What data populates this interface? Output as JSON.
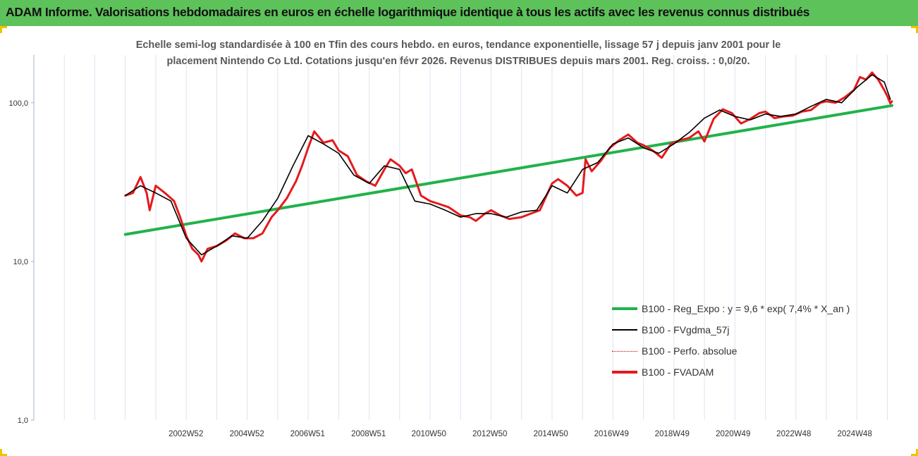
{
  "title": "ADAM Informe. Valorisations hebdomadaires en euros en échelle logarithmique identique à tous les actifs avec les revenus connus distribués",
  "subtitle_lines": [
    "Echelle semi-log standardisée à 100 en Tfin des cours hebdo. en euros, tendance exponentielle, lissage 57 j depuis janv 2001 pour le",
    "placement Nintendo Co Ltd. Cotations jusqu'en févr 2026. Revenus DISTRIBUES depuis mars 2001. Reg. croiss. : 0,0/20."
  ],
  "colors": {
    "title_bar": "#5ec25b",
    "frame_corner": "#f2c300",
    "trend": "#21b24b",
    "smooth": "#000000",
    "perf": "#c00000",
    "fvadam": "#e41a1c"
  },
  "chart_data": {
    "type": "line",
    "y_scale": "log",
    "ylim": [
      1,
      200
    ],
    "y_ticks": [
      "1,0",
      "10,0",
      "100,0"
    ],
    "y_tick_values": [
      1,
      10,
      100
    ],
    "x_range": [
      1998.0,
      2026.15
    ],
    "x_tick_labels": [
      "2002W52",
      "2004W52",
      "2006W51",
      "2008W51",
      "2010W50",
      "2012W50",
      "2014W50",
      "2016W49",
      "2018W49",
      "2020W49",
      "2022W48",
      "2024W48"
    ],
    "x_tick_values": [
      2002.99,
      2004.99,
      2006.98,
      2008.98,
      2010.96,
      2012.96,
      2014.96,
      2016.95,
      2018.94,
      2020.94,
      2022.93,
      2024.93
    ],
    "grid": true,
    "legend_position": "bottom-right",
    "series": [
      {
        "name": "B100 - Reg_Expo : y = 9,6 * exp( 7,4% *  X_an )",
        "style": "trend",
        "x": [
          2001.0,
          2026.15
        ],
        "y": [
          14.8,
          96.0
        ]
      },
      {
        "name": "B100 - FVgdma_57j",
        "style": "smooth",
        "x": [
          2001.0,
          2001.5,
          2002.0,
          2002.5,
          2003.0,
          2003.5,
          2004.0,
          2004.5,
          2005.0,
          2005.5,
          2006.0,
          2006.5,
          2007.0,
          2007.5,
          2008.0,
          2008.5,
          2009.0,
          2009.5,
          2010.0,
          2010.5,
          2011.0,
          2011.5,
          2012.0,
          2012.5,
          2013.0,
          2013.5,
          2014.0,
          2014.5,
          2015.0,
          2015.5,
          2016.0,
          2016.5,
          2017.0,
          2017.5,
          2018.0,
          2018.5,
          2019.0,
          2019.5,
          2020.0,
          2020.5,
          2021.0,
          2021.5,
          2022.0,
          2022.5,
          2023.0,
          2023.5,
          2024.0,
          2024.5,
          2025.0,
          2025.5,
          2025.9,
          2026.1
        ],
        "y": [
          26,
          30,
          27,
          24,
          14,
          11,
          12.5,
          14.5,
          14,
          18,
          25,
          40,
          62,
          55,
          48,
          35,
          31,
          40,
          38,
          24,
          23,
          21,
          19,
          20,
          20,
          19,
          20.5,
          21,
          30,
          27,
          38,
          42,
          55,
          60,
          52,
          48,
          55,
          65,
          80,
          90,
          82,
          78,
          85,
          82,
          85,
          95,
          105,
          100,
          125,
          150,
          135,
          105
        ]
      },
      {
        "name": "B100 - Perfo. absolue",
        "style": "perf",
        "x": [
          2001.0,
          2001.5,
          2002.0,
          2002.5,
          2003.0,
          2003.5,
          2004.0,
          2004.5,
          2005.0,
          2005.5,
          2006.0,
          2006.5,
          2007.0,
          2007.5,
          2008.0,
          2008.5,
          2009.0,
          2009.5,
          2010.0,
          2010.5,
          2011.0,
          2011.5,
          2012.0,
          2012.5,
          2013.0,
          2013.5,
          2014.0,
          2014.5,
          2015.0,
          2015.5,
          2016.0,
          2016.5,
          2017.0,
          2017.5,
          2018.0,
          2018.5,
          2019.0,
          2019.5,
          2020.0,
          2020.5,
          2021.0,
          2021.5,
          2022.0,
          2022.5,
          2023.0,
          2023.5,
          2024.0,
          2024.5,
          2025.0,
          2025.5,
          2025.9,
          2026.1
        ],
        "y": [
          26,
          30,
          27,
          24,
          14,
          11,
          12.5,
          14.5,
          14,
          18,
          25,
          40,
          62,
          55,
          48,
          35,
          31,
          40,
          38,
          24,
          23,
          21,
          19,
          20,
          20,
          19,
          20.5,
          21,
          30,
          27,
          38,
          42,
          55,
          60,
          52,
          48,
          55,
          65,
          80,
          90,
          82,
          78,
          85,
          82,
          85,
          95,
          105,
          100,
          125,
          150,
          135,
          105
        ]
      },
      {
        "name": "B100 - FVADAM",
        "style": "fvadam",
        "x": [
          2001.0,
          2001.25,
          2001.5,
          2001.7,
          2001.8,
          2002.0,
          2002.3,
          2002.6,
          2002.8,
          2003.0,
          2003.2,
          2003.4,
          2003.5,
          2003.7,
          2004.0,
          2004.3,
          2004.6,
          2004.9,
          2005.2,
          2005.5,
          2005.8,
          2006.0,
          2006.3,
          2006.6,
          2006.8,
          2007.0,
          2007.2,
          2007.5,
          2007.8,
          2008.0,
          2008.3,
          2008.6,
          2008.9,
          2009.2,
          2009.5,
          2009.7,
          2010.0,
          2010.2,
          2010.4,
          2010.7,
          2011.0,
          2011.3,
          2011.6,
          2012.0,
          2012.3,
          2012.5,
          2012.8,
          2013.0,
          2013.3,
          2013.6,
          2014.0,
          2014.3,
          2014.6,
          2015.0,
          2015.2,
          2015.5,
          2015.8,
          2016.0,
          2016.1,
          2016.3,
          2016.6,
          2016.9,
          2017.2,
          2017.5,
          2017.8,
          2018.0,
          2018.3,
          2018.6,
          2018.9,
          2019.2,
          2019.5,
          2019.8,
          2020.0,
          2020.3,
          2020.6,
          2020.9,
          2021.2,
          2021.5,
          2021.8,
          2022.0,
          2022.3,
          2022.6,
          2022.9,
          2023.2,
          2023.5,
          2023.8,
          2024.0,
          2024.3,
          2024.6,
          2024.9,
          2025.1,
          2025.3,
          2025.5,
          2025.7,
          2025.9,
          2026.0,
          2026.1,
          2026.15
        ],
        "y": [
          26,
          27,
          34,
          27,
          21,
          30,
          27,
          24,
          19,
          14.5,
          12,
          11,
          10,
          12,
          12.5,
          13.5,
          15,
          14,
          14,
          15,
          19,
          21,
          25,
          32,
          40,
          52,
          66,
          56,
          58,
          50,
          46,
          35,
          32,
          30,
          38,
          44,
          40,
          36,
          38,
          26,
          24,
          23,
          22,
          19.5,
          19,
          18,
          20,
          21,
          19.5,
          18.5,
          19,
          20,
          21,
          31,
          33,
          30,
          26,
          27,
          44,
          37,
          43,
          52,
          58,
          63,
          56,
          54,
          50,
          45,
          55,
          58,
          60,
          66,
          57,
          79,
          91,
          86,
          74,
          79,
          86,
          88,
          80,
          82,
          83,
          88,
          90,
          100,
          102,
          100,
          108,
          120,
          145,
          140,
          155,
          140,
          120,
          110,
          99,
          102
        ]
      }
    ]
  }
}
